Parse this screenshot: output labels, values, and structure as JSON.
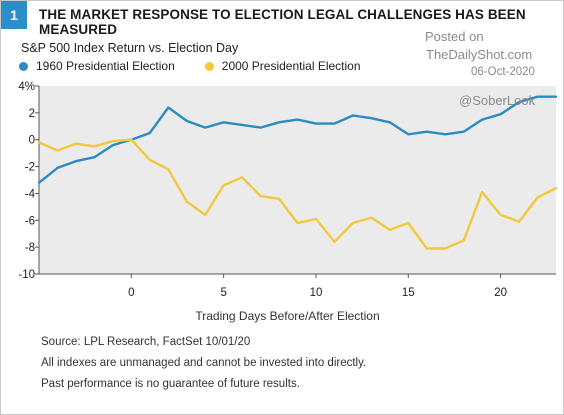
{
  "header": {
    "badge": "1",
    "title": "THE MARKET RESPONSE TO ELECTION LEGAL CHALLENGES HAS BEEN MEASURED"
  },
  "watermark": {
    "posted": "Posted on",
    "site": "TheDailyShot.com",
    "date": "06-Oct-2020",
    "handle": "@SoberLook"
  },
  "footer": {
    "source": "Source: LPL Research, FactSet   10/01/20",
    "note1": "All indexes are unmanaged and cannot be invested into directly.",
    "note2": "Past performance is no guarantee of future results."
  },
  "colors": {
    "series_1960": "#2b8cc4",
    "series_2000": "#f2c83c",
    "badge": "#2d8dc9",
    "plot_bg": "#ebebeb"
  },
  "chart_data": {
    "type": "line",
    "title": "S&P 500 Index Return vs. Election Day",
    "xlabel": "Trading Days Before/After Election",
    "ylabel": "",
    "xlim": [
      -5,
      23
    ],
    "ylim": [
      -10,
      4
    ],
    "xticks": [
      0,
      5,
      10,
      15,
      20
    ],
    "yticks": [
      4,
      2,
      0,
      -2,
      -4,
      -6,
      -8,
      -10
    ],
    "ytick_labels": [
      "4%",
      "2",
      "0",
      "-2",
      "-4",
      "-6",
      "-8",
      "-10"
    ],
    "legend_position": "top-left",
    "grid": false,
    "x": [
      -5,
      -4,
      -3,
      -2,
      -1,
      0,
      1,
      2,
      3,
      4,
      5,
      6,
      7,
      8,
      9,
      10,
      11,
      12,
      13,
      14,
      15,
      16,
      17,
      18,
      19,
      20,
      21,
      22,
      23
    ],
    "series": [
      {
        "name": "1960 Presidential Election",
        "color": "#2b8cc4",
        "values": [
          -3.2,
          -2.1,
          -1.6,
          -1.3,
          -0.4,
          0.0,
          0.5,
          2.4,
          1.4,
          0.9,
          1.3,
          1.1,
          0.9,
          1.3,
          1.5,
          1.2,
          1.2,
          1.8,
          1.6,
          1.3,
          0.4,
          0.6,
          0.4,
          0.6,
          1.5,
          1.9,
          2.8,
          3.2,
          3.2
        ]
      },
      {
        "name": "2000 Presidential Election",
        "color": "#f2c83c",
        "values": [
          -0.2,
          -0.8,
          -0.3,
          -0.5,
          -0.1,
          0.0,
          -1.5,
          -2.2,
          -4.6,
          -5.6,
          -3.4,
          -2.8,
          -4.2,
          -4.4,
          -6.2,
          -5.9,
          -7.6,
          -6.2,
          -5.8,
          -6.7,
          -6.2,
          -8.1,
          -8.1,
          -7.5,
          -3.9,
          -5.6,
          -6.1,
          -4.3,
          -3.6
        ]
      }
    ]
  }
}
